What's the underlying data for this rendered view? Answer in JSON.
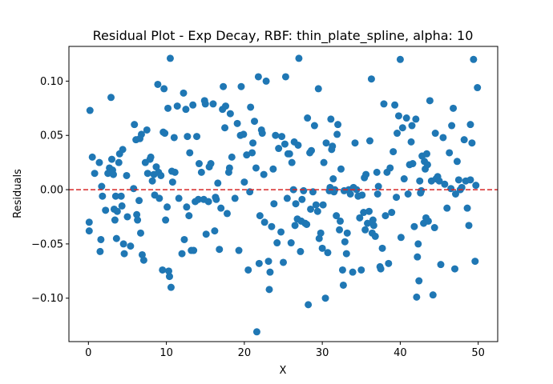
{
  "chart_data": {
    "type": "scatter",
    "title": "Residual Plot - Exp Decay, RBF: thin_plate_spline, alpha: 10",
    "xlabel": "X",
    "ylabel": "Residuals",
    "xlim": [
      -2.5,
      52.5
    ],
    "ylim": [
      -0.14,
      0.132
    ],
    "xticks": [
      0,
      10,
      20,
      30,
      40,
      50
    ],
    "yticks": [
      -0.1,
      -0.05,
      0.0,
      0.05,
      0.1
    ],
    "xtick_labels": [
      "0",
      "10",
      "20",
      "30",
      "40",
      "50"
    ],
    "ytick_labels": [
      "−0.10",
      "−0.05",
      "0.00",
      "0.05",
      "0.10"
    ],
    "grid": false,
    "reference_line": {
      "y": 0.0,
      "color": "#d62728",
      "style": "dashed"
    },
    "marker_color": "#1f77b4",
    "series": [
      {
        "points": [
          [
            0.2,
            0.073
          ],
          [
            0.1,
            -0.03
          ],
          [
            0.1,
            -0.038
          ],
          [
            0.5,
            0.03
          ],
          [
            0.8,
            0.015
          ],
          [
            1.4,
            0.025
          ],
          [
            1.5,
            -0.057
          ],
          [
            1.6,
            -0.046
          ],
          [
            1.7,
            0.003
          ],
          [
            1.8,
            -0.006
          ],
          [
            2.2,
            -0.019
          ],
          [
            2.5,
            0.015
          ],
          [
            2.7,
            0.02
          ],
          [
            2.9,
            0.085
          ],
          [
            3.0,
            0.028
          ],
          [
            3.1,
            0.018
          ],
          [
            3.2,
            0.014
          ],
          [
            3.3,
            -0.018
          ],
          [
            3.4,
            -0.028
          ],
          [
            3.5,
            -0.006
          ],
          [
            3.6,
            -0.045
          ],
          [
            3.7,
            -0.02
          ],
          [
            3.9,
            0.025
          ],
          [
            4.0,
            0.033
          ],
          [
            4.2,
            -0.006
          ],
          [
            4.3,
            -0.015
          ],
          [
            4.4,
            0.037
          ],
          [
            4.5,
            -0.05
          ],
          [
            4.6,
            -0.059
          ],
          [
            4.9,
            0.013
          ],
          [
            5.0,
            -0.025
          ],
          [
            5.4,
            -0.052
          ],
          [
            5.8,
            0.001
          ],
          [
            5.9,
            0.06
          ],
          [
            6.1,
            0.046
          ],
          [
            6.2,
            -0.023
          ],
          [
            6.3,
            -0.028
          ],
          [
            6.5,
            -0.01
          ],
          [
            6.6,
            0.047
          ],
          [
            6.7,
            -0.04
          ],
          [
            6.8,
            0.051
          ],
          [
            6.9,
            -0.06
          ],
          [
            7.1,
            -0.065
          ],
          [
            7.3,
            0.025
          ],
          [
            7.5,
            0.055
          ],
          [
            7.6,
            0.015
          ],
          [
            7.9,
            0.028
          ],
          [
            8.0,
            0.03
          ],
          [
            8.2,
            0.008
          ],
          [
            8.4,
            0.014
          ],
          [
            8.5,
            -0.005
          ],
          [
            8.7,
            0.021
          ],
          [
            8.9,
            0.097
          ],
          [
            9.0,
            0.016
          ],
          [
            9.1,
            -0.008
          ],
          [
            9.3,
            0.013
          ],
          [
            9.5,
            -0.074
          ],
          [
            9.6,
            0.053
          ],
          [
            9.7,
            0.093
          ],
          [
            9.8,
            0.052
          ],
          [
            9.9,
            -0.028
          ],
          [
            10.1,
            -0.016
          ],
          [
            10.2,
            0.075
          ],
          [
            10.3,
            -0.075
          ],
          [
            10.4,
            -0.08
          ],
          [
            10.5,
            0.121
          ],
          [
            10.6,
            -0.09
          ],
          [
            10.7,
            0.017
          ],
          [
            10.8,
            0.007
          ],
          [
            11.0,
            0.048
          ],
          [
            11.1,
            0.016
          ],
          [
            11.4,
            0.077
          ],
          [
            11.6,
            -0.008
          ],
          [
            12.0,
            -0.059
          ],
          [
            12.2,
            0.089
          ],
          [
            12.3,
            -0.046
          ],
          [
            12.5,
            0.074
          ],
          [
            12.6,
            -0.016
          ],
          [
            12.7,
            0.049
          ],
          [
            12.9,
            -0.024
          ],
          [
            13.0,
            0.034
          ],
          [
            13.2,
            -0.056
          ],
          [
            13.4,
            0.078
          ],
          [
            13.5,
            -0.056
          ],
          [
            13.7,
            -0.011
          ],
          [
            13.9,
            0.049
          ],
          [
            14.1,
            -0.009
          ],
          [
            14.2,
            0.024
          ],
          [
            14.5,
            0.016
          ],
          [
            14.8,
            -0.009
          ],
          [
            14.9,
            0.082
          ],
          [
            15.0,
            0.079
          ],
          [
            15.1,
            -0.041
          ],
          [
            15.4,
            -0.011
          ],
          [
            15.5,
            0.021
          ],
          [
            15.7,
            0.024
          ],
          [
            16.0,
            0.079
          ],
          [
            16.2,
            -0.038
          ],
          [
            16.3,
            -0.007
          ],
          [
            16.4,
            -0.009
          ],
          [
            16.6,
            0.006
          ],
          [
            16.8,
            -0.055
          ],
          [
            17.0,
            -0.017
          ],
          [
            17.2,
            0.074
          ],
          [
            17.3,
            0.095
          ],
          [
            17.5,
            0.057
          ],
          [
            17.6,
            0.077
          ],
          [
            17.8,
            -0.022
          ],
          [
            18.0,
            0.016
          ],
          [
            18.1,
            0.02
          ],
          [
            18.2,
            0.07
          ],
          [
            18.4,
            0.03
          ],
          [
            18.8,
            -0.008
          ],
          [
            19.1,
            0.061
          ],
          [
            19.3,
            -0.056
          ],
          [
            19.5,
            0.05
          ],
          [
            19.6,
            0.095
          ],
          [
            19.9,
            0.051
          ],
          [
            20.0,
            0.007
          ],
          [
            20.3,
            0.032
          ],
          [
            20.5,
            -0.074
          ],
          [
            20.7,
            -0.002
          ],
          [
            20.8,
            0.076
          ],
          [
            21.0,
            0.034
          ],
          [
            21.1,
            0.043
          ],
          [
            21.3,
            0.063
          ],
          [
            21.5,
            0.02
          ],
          [
            21.6,
            -0.131
          ],
          [
            21.8,
            0.104
          ],
          [
            21.9,
            -0.068
          ],
          [
            22.0,
            -0.024
          ],
          [
            22.2,
            0.055
          ],
          [
            22.3,
            0.052
          ],
          [
            22.5,
            0.014
          ],
          [
            22.6,
            -0.03
          ],
          [
            22.8,
            0.1
          ],
          [
            23.1,
            -0.066
          ],
          [
            23.2,
            -0.092
          ],
          [
            23.3,
            -0.076
          ],
          [
            23.5,
            -0.034
          ],
          [
            23.7,
            0.019
          ],
          [
            23.8,
            -0.013
          ],
          [
            24.0,
            0.05
          ],
          [
            24.2,
            -0.049
          ],
          [
            24.4,
            0.038
          ],
          [
            24.7,
            -0.039
          ],
          [
            24.8,
            0.049
          ],
          [
            25.0,
            -0.067
          ],
          [
            25.2,
            0.042
          ],
          [
            25.3,
            0.104
          ],
          [
            25.5,
            -0.008
          ],
          [
            25.6,
            0.033
          ],
          [
            25.8,
            0.033
          ],
          [
            26.0,
            -0.049
          ],
          [
            26.1,
            0.025
          ],
          [
            26.3,
            0.0
          ],
          [
            26.4,
            0.044
          ],
          [
            26.5,
            -0.033
          ],
          [
            26.6,
            -0.013
          ],
          [
            26.8,
            -0.027
          ],
          [
            27.0,
            0.121
          ],
          [
            27.2,
            -0.057
          ],
          [
            27.3,
            -0.029
          ],
          [
            27.4,
            -0.009
          ],
          [
            27.6,
            -0.001
          ],
          [
            27.8,
            -0.031
          ],
          [
            28.0,
            -0.032
          ],
          [
            28.1,
            0.066
          ],
          [
            28.2,
            -0.106
          ],
          [
            28.4,
            0.034
          ],
          [
            28.5,
            -0.018
          ],
          [
            28.6,
            0.036
          ],
          [
            28.8,
            -0.002
          ],
          [
            29.0,
            0.059
          ],
          [
            29.2,
            -0.014
          ],
          [
            29.4,
            -0.02
          ],
          [
            29.5,
            0.093
          ],
          [
            29.6,
            -0.045
          ],
          [
            29.8,
            -0.04
          ],
          [
            30.0,
            -0.054
          ],
          [
            30.1,
            -0.014
          ],
          [
            30.2,
            0.025
          ],
          [
            30.4,
            -0.1
          ],
          [
            30.5,
            0.043
          ],
          [
            30.7,
            -0.058
          ],
          [
            30.9,
            -0.001
          ],
          [
            31.0,
            0.002
          ],
          [
            31.1,
            0.065
          ],
          [
            31.2,
            0.037
          ],
          [
            31.3,
            0.04
          ],
          [
            31.4,
            0.01
          ],
          [
            31.5,
            -0.002
          ],
          [
            31.6,
            0.0
          ],
          [
            31.8,
            -0.024
          ],
          [
            31.9,
            0.051
          ],
          [
            32.0,
            0.06
          ],
          [
            32.2,
            -0.037
          ],
          [
            32.3,
            -0.029
          ],
          [
            32.4,
            0.019
          ],
          [
            32.6,
            -0.074
          ],
          [
            32.7,
            -0.088
          ],
          [
            32.8,
            -0.001
          ],
          [
            32.9,
            -0.048
          ],
          [
            33.1,
            -0.059
          ],
          [
            33.2,
            -0.04
          ],
          [
            33.4,
            0.0
          ],
          [
            33.6,
            -0.004
          ],
          [
            33.9,
            -0.076
          ],
          [
            34.0,
            0.002
          ],
          [
            34.2,
            0.043
          ],
          [
            34.4,
            0.0
          ],
          [
            34.6,
            -0.006
          ],
          [
            34.8,
            -0.026
          ],
          [
            35.0,
            -0.074
          ],
          [
            35.1,
            -0.005
          ],
          [
            35.3,
            -0.021
          ],
          [
            35.4,
            0.011
          ],
          [
            35.5,
            -0.037
          ],
          [
            35.6,
            0.014
          ],
          [
            35.8,
            -0.031
          ],
          [
            36.0,
            -0.02
          ],
          [
            36.1,
            0.045
          ],
          [
            36.3,
            0.102
          ],
          [
            36.4,
            -0.04
          ],
          [
            36.5,
            -0.028
          ],
          [
            36.6,
            -0.033
          ],
          [
            36.8,
            -0.043
          ],
          [
            37.0,
            0.016
          ],
          [
            37.1,
            -0.004
          ],
          [
            37.2,
            0.003
          ],
          [
            37.4,
            -0.071
          ],
          [
            37.5,
            -0.073
          ],
          [
            37.7,
            -0.054
          ],
          [
            37.9,
            0.079
          ],
          [
            38.1,
            -0.024
          ],
          [
            38.3,
            0.016
          ],
          [
            38.5,
            -0.068
          ],
          [
            38.7,
            0.02
          ],
          [
            38.9,
            -0.021
          ],
          [
            39.1,
            0.035
          ],
          [
            39.3,
            0.078
          ],
          [
            39.5,
            -0.007
          ],
          [
            39.6,
            0.052
          ],
          [
            39.8,
            0.068
          ],
          [
            40.0,
            0.12
          ],
          [
            40.1,
            -0.044
          ],
          [
            40.3,
            0.057
          ],
          [
            40.5,
            0.01
          ],
          [
            40.8,
            0.066
          ],
          [
            41.0,
            -0.004
          ],
          [
            41.2,
            0.023
          ],
          [
            41.4,
            0.044
          ],
          [
            41.5,
            0.059
          ],
          [
            41.6,
            0.024
          ],
          [
            41.8,
            -0.034
          ],
          [
            42.0,
            0.065
          ],
          [
            42.1,
            -0.099
          ],
          [
            42.2,
            -0.062
          ],
          [
            42.3,
            -0.05
          ],
          [
            42.4,
            -0.084
          ],
          [
            42.5,
            0.008
          ],
          [
            42.6,
            -0.003
          ],
          [
            42.7,
            -0.001
          ],
          [
            42.8,
            0.031
          ],
          [
            43.0,
            -0.031
          ],
          [
            43.1,
            0.026
          ],
          [
            43.2,
            0.019
          ],
          [
            43.3,
            -0.026
          ],
          [
            43.4,
            0.033
          ],
          [
            43.5,
            0.023
          ],
          [
            43.6,
            -0.029
          ],
          [
            43.8,
            0.082
          ],
          [
            44.0,
            0.008
          ],
          [
            44.2,
            -0.097
          ],
          [
            44.4,
            -0.035
          ],
          [
            44.5,
            0.052
          ],
          [
            44.6,
            0.01
          ],
          [
            44.8,
            0.012
          ],
          [
            45.0,
            0.008
          ],
          [
            45.2,
            -0.069
          ],
          [
            45.5,
            0.048
          ],
          [
            45.7,
            0.005
          ],
          [
            46.0,
            -0.017
          ],
          [
            46.3,
            0.034
          ],
          [
            46.6,
            0.059
          ],
          [
            46.8,
            0.075
          ],
          [
            47.0,
            -0.073
          ],
          [
            47.1,
            -0.004
          ],
          [
            47.3,
            0.026
          ],
          [
            47.5,
            0.009
          ],
          [
            47.7,
            0.0
          ],
          [
            47.9,
            0.002
          ],
          [
            48.2,
            0.046
          ],
          [
            48.4,
            0.008
          ],
          [
            48.6,
            -0.017
          ],
          [
            48.8,
            -0.033
          ],
          [
            49.0,
            0.06
          ],
          [
            49.2,
            0.043
          ],
          [
            49.4,
            0.12
          ],
          [
            49.6,
            -0.066
          ],
          [
            49.7,
            0.004
          ],
          [
            49.9,
            0.094
          ],
          [
            49.0,
            0.009
          ],
          [
            46.5,
            0.001
          ],
          [
            26.9,
            0.041
          ]
        ]
      }
    ]
  }
}
